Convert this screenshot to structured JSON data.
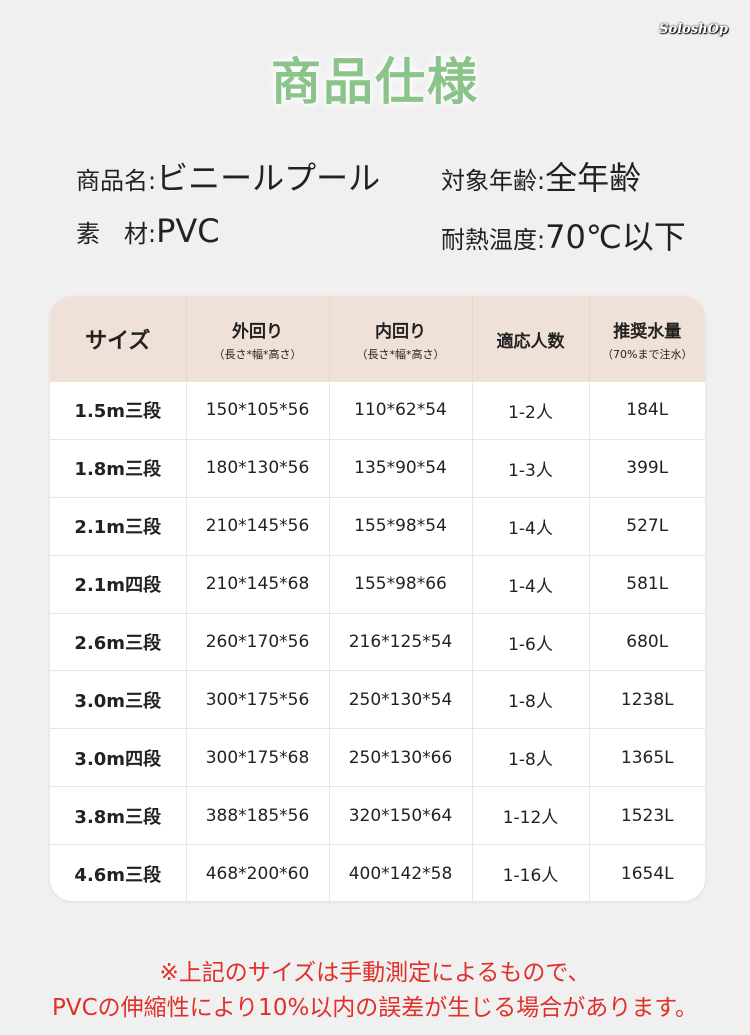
{
  "brand": "SoloshOp",
  "title": "商品仕様",
  "specs": {
    "name_label": "商品名",
    "name_value": "ビニールプール",
    "age_label": "対象年齢",
    "age_value": "全年齢",
    "material_label": "素　材",
    "material_value": "PVC",
    "heat_label": "耐熱温度",
    "heat_value": "70℃以下",
    "colon": ":"
  },
  "table": {
    "headers": [
      {
        "main": "サイズ",
        "sub": ""
      },
      {
        "main": "外回り",
        "sub": "（長さ*幅*高さ）"
      },
      {
        "main": "内回り",
        "sub": "（長さ*幅*高さ）"
      },
      {
        "main": "適応人数",
        "sub": ""
      },
      {
        "main": "推奨水量",
        "sub": "（70%まで注水）"
      }
    ],
    "rows": [
      [
        "1.5m三段",
        "150*105*56",
        "110*62*54",
        "1-2人",
        "184L"
      ],
      [
        "1.8m三段",
        "180*130*56",
        "135*90*54",
        "1-3人",
        "399L"
      ],
      [
        "2.1m三段",
        "210*145*56",
        "155*98*54",
        "1-4人",
        "527L"
      ],
      [
        "2.1m四段",
        "210*145*68",
        "155*98*66",
        "1-4人",
        "581L"
      ],
      [
        "2.6m三段",
        "260*170*56",
        "216*125*54",
        "1-6人",
        "680L"
      ],
      [
        "3.0m三段",
        "300*175*56",
        "250*130*54",
        "1-8人",
        "1238L"
      ],
      [
        "3.0m四段",
        "300*175*68",
        "250*130*66",
        "1-8人",
        "1365L"
      ],
      [
        "3.8m三段",
        "388*185*56",
        "320*150*64",
        "1-12人",
        "1523L"
      ],
      [
        "4.6m三段",
        "468*200*60",
        "400*142*58",
        "1-16人",
        "1654L"
      ]
    ]
  },
  "notes": {
    "line1": "※上記のサイズは手動測定によるもので、",
    "line2": "PVCの伸縮性により10%以内の誤差が生じる場合があります。"
  },
  "colors": {
    "title": "#8bc48a",
    "header_bg": "#efe1d8",
    "note": "#e0302a",
    "background": "#f0f0f0"
  }
}
